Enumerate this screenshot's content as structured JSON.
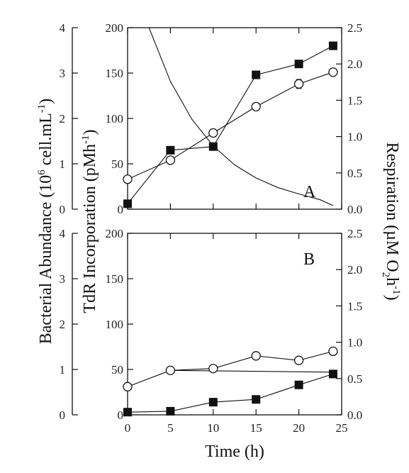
{
  "chart_data": {
    "type": "line",
    "xlabel": "Time (h)",
    "x_ticks": [
      "0",
      "5",
      "10",
      "15",
      "20",
      "25"
    ],
    "xlim": [
      0,
      25
    ],
    "axes": {
      "abundance": {
        "label": "Bacterial Abundance (10",
        "label_sup": "6",
        "label_tail": " cell.mL",
        "label_sup2": "-1",
        "label_end": ")",
        "ylim": [
          0,
          4
        ],
        "ticks": [
          "0",
          "1",
          "2",
          "3",
          "4"
        ]
      },
      "tdr": {
        "label": "TdR Incorporation (pMh",
        "label_sup": "-1",
        "label_end": ")",
        "ylim": [
          0,
          200
        ],
        "ticks": [
          "0",
          "50",
          "100",
          "150",
          "200"
        ]
      },
      "respiration": {
        "label": "Respiration (µM O",
        "label_sub": "2",
        "label_mid": "h",
        "label_sup": "-1",
        "label_end": ")",
        "ylim": [
          0,
          2.5
        ],
        "ticks": [
          "0.0",
          "0.5",
          "1.0",
          "1.5",
          "2.0",
          "2.5"
        ],
        "ticks_b": [
          "0.0",
          "0.5",
          "1.0",
          "1.5",
          "2.0",
          "2.5"
        ]
      }
    },
    "panels": [
      {
        "label": "A",
        "series": [
          {
            "marker": "square-filled",
            "axis": "tdr",
            "x": [
              0,
              5,
              10,
              15,
              20,
              24
            ],
            "y": [
              6,
              65,
              69,
              148,
              160,
              180
            ]
          },
          {
            "marker": "circle-open",
            "axis": "tdr",
            "x": [
              0,
              5,
              10,
              15,
              20,
              24
            ],
            "y": [
              33,
              54,
              84,
              113,
              138,
              151
            ],
            "err": [
              3,
              3,
              4,
              4,
              5,
              4
            ]
          },
          {
            "marker": "none",
            "axis": "respiration",
            "curve": "exponential-decay",
            "x": [
              2.5,
              5,
              7.5,
              10,
              12.5,
              15,
              17.5,
              20,
              22.5,
              24
            ],
            "y": [
              2.5,
              1.76,
              1.24,
              0.87,
              0.61,
              0.43,
              0.3,
              0.21,
              0.13,
              0.05
            ]
          }
        ]
      },
      {
        "label": "B",
        "series": [
          {
            "marker": "circle-open",
            "axis": "tdr",
            "x": [
              0,
              5,
              10,
              15,
              20,
              24
            ],
            "y": [
              31,
              49,
              51,
              65,
              60,
              70
            ],
            "err": [
              3,
              3,
              3,
              4,
              3,
              4
            ]
          },
          {
            "marker": "square-filled",
            "axis": "tdr",
            "x": [
              0,
              5,
              10,
              15,
              20,
              24
            ],
            "y": [
              3,
              4,
              14,
              17,
              33,
              45
            ]
          },
          {
            "marker": "none",
            "axis": "tdr",
            "curve": "line",
            "x": [
              5,
              24
            ],
            "y": [
              49,
              47
            ]
          }
        ]
      }
    ]
  }
}
